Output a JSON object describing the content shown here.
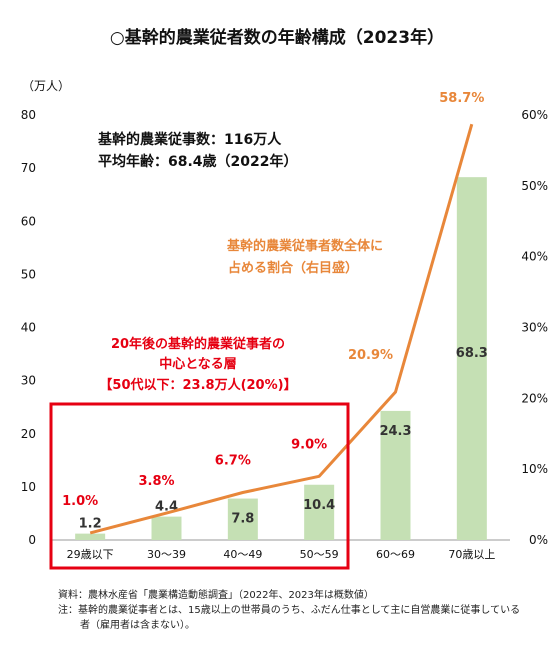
{
  "chart_data": {
    "type": "bar",
    "title": "○基幹的農業従者数の年齢構成（2023年）",
    "y_unit": "（万人）",
    "categories": [
      "29歳以下",
      "30～39",
      "40～49",
      "50～59",
      "60～69",
      "70歳以上"
    ],
    "values": [
      1.2,
      4.4,
      7.8,
      10.4,
      24.3,
      68.3
    ],
    "value_labels": [
      "1.2",
      "4.4",
      "7.8",
      "10.4",
      "24.3",
      "68.3"
    ],
    "ylim": [
      0,
      80
    ],
    "y_ticks": [
      "0",
      "10",
      "20",
      "30",
      "40",
      "50",
      "60",
      "70",
      "80"
    ],
    "y2lim": [
      0,
      60
    ],
    "y2_ticks": [
      "0%",
      "10%",
      "20%",
      "30%",
      "40%",
      "50%",
      "60%"
    ],
    "line": {
      "values": [
        1.0,
        3.8,
        6.7,
        9.0,
        20.9,
        58.7
      ],
      "labels": [
        "1.0%",
        "3.8%",
        "6.7%",
        "9.0%",
        "20.9%",
        "58.7%"
      ]
    },
    "colors": {
      "bar": "#c5e0b4",
      "line": "#e8873a",
      "highlight": "#e60012"
    },
    "info_lines": [
      "基幹的農業従事数：116万人",
      "平均年齢：68.4歳（2022年）"
    ],
    "line_note": [
      "基幹的農業従事者数全体に",
      "占める割合（右目盛）"
    ],
    "highlight_note": [
      "20年後の基幹的農業従事者の",
      "中心となる層",
      "【50代以下：23.8万人(20%)】"
    ],
    "footnotes": [
      "資料：農林水産省「農業構造動態調査」（2022年、2023年は概数値）",
      "注：基幹的農業従事者とは、15歳以上の世帯員のうち、ふだん仕事として主に自営農業に従事している",
      "者（雇用者は含まない）。"
    ]
  }
}
